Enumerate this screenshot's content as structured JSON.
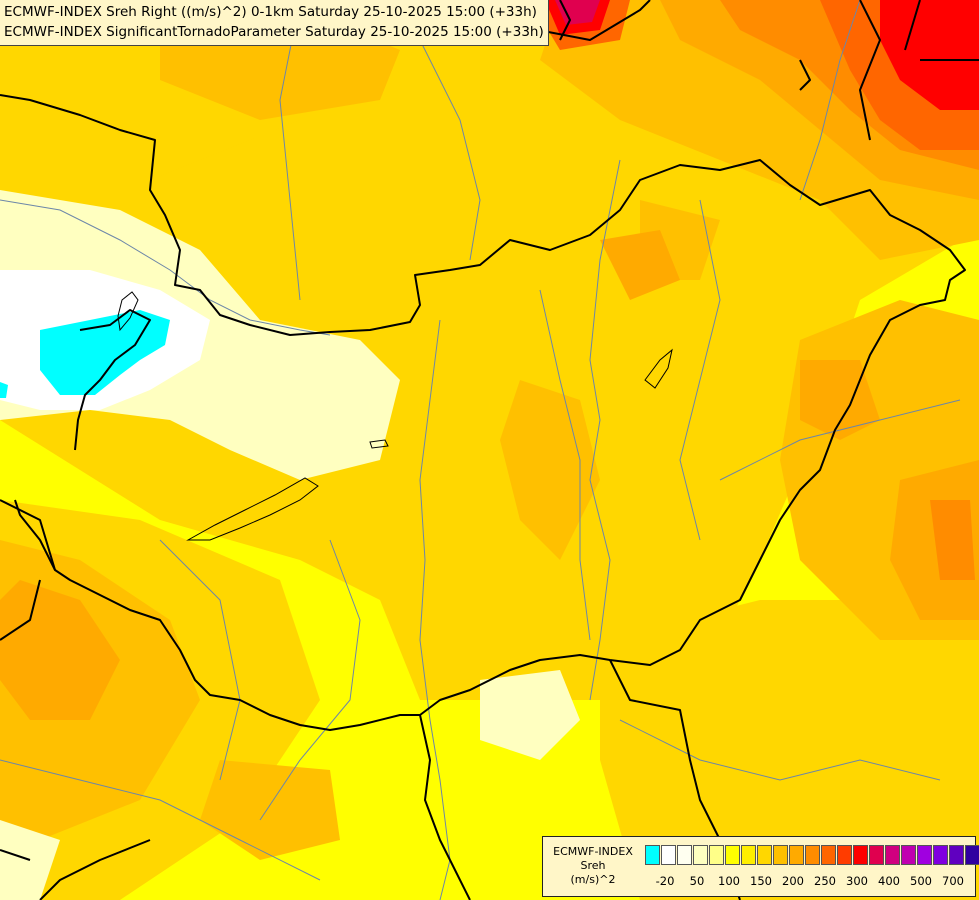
{
  "header": {
    "line1": "ECMWF-INDEX Sreh Right ((m/s)^2) 0-1km Saturday 25-10-2025 15:00 (+33h)",
    "line2": "ECMWF-INDEX SignificantTornadoParameter Saturday 25-10-2025 15:00 (+33h)"
  },
  "legend": {
    "title_line1": "ECMWF-INDEX",
    "title_line2": "Sreh",
    "title_line3": "(m/s)^2",
    "swatches": [
      "#00ffff",
      "#ffffff",
      "#fffff0",
      "#ffffc0",
      "#ffff88",
      "#ffff00",
      "#ffee00",
      "#ffd700",
      "#ffc000",
      "#ffaa00",
      "#ff8c00",
      "#ff6600",
      "#ff3c00",
      "#ff0000",
      "#e0004f",
      "#d0007f",
      "#c000b0",
      "#a000e0",
      "#8000e0",
      "#6000c0",
      "#3000a0",
      "#000080"
    ],
    "ticks": [
      "-20",
      "50",
      "100",
      "150",
      "200",
      "250",
      "300",
      "400",
      "500",
      "700"
    ]
  },
  "map_colors": {
    "yellow": "#ffff00",
    "gold": "#ffd700",
    "orange_light": "#ffc000",
    "orange": "#ffaa00",
    "orange_dark": "#ff8c00",
    "red_orange": "#ff6600",
    "red": "#ff0000",
    "magenta": "#e0004f",
    "pale": "#ffffc0",
    "white": "#ffffff",
    "cyan": "#00ffff"
  }
}
